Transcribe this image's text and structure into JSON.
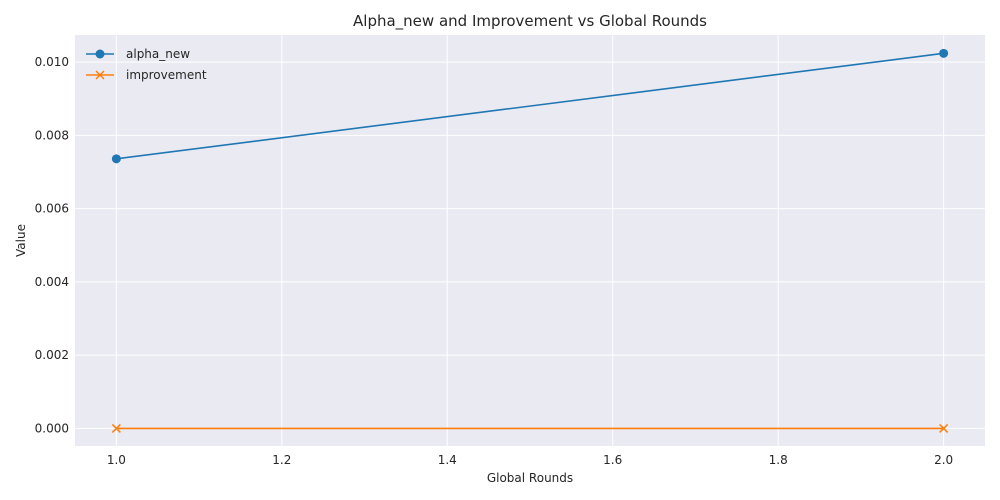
{
  "chart_data": {
    "type": "line",
    "title": "Alpha_new and Improvement vs Global Rounds",
    "xlabel": "Global Rounds",
    "ylabel": "Value",
    "xlim": [
      0.95,
      2.05
    ],
    "ylim": [
      -0.00048,
      0.01074
    ],
    "xticks": [
      "1.0",
      "1.2",
      "1.4",
      "1.6",
      "1.8",
      "2.0"
    ],
    "yticks": [
      "0.000",
      "0.002",
      "0.004",
      "0.006",
      "0.008",
      "0.010"
    ],
    "x": [
      1.0,
      2.0
    ],
    "series": [
      {
        "name": "alpha_new",
        "values": [
          0.00736,
          0.01024
        ],
        "color": "#1f77b4",
        "marker": "circle"
      },
      {
        "name": "improvement",
        "values": [
          0.0,
          0.0
        ],
        "color": "#ff7f0e",
        "marker": "x"
      }
    ],
    "grid": true,
    "legend": "top-left",
    "background": "#eaeaf2"
  }
}
